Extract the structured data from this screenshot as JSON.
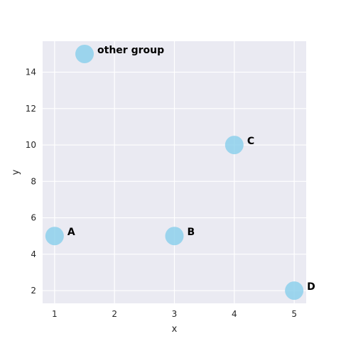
{
  "chart_data": {
    "type": "scatter",
    "xlabel": "x",
    "ylabel": "y",
    "xlim": [
      0.8,
      5.2
    ],
    "ylim": [
      1.3,
      15.7
    ],
    "xticks": [
      1,
      2,
      3,
      4,
      5
    ],
    "yticks": [
      2,
      4,
      6,
      8,
      10,
      12,
      14
    ],
    "grid": true,
    "points": [
      {
        "x": 1,
        "y": 5,
        "label": "A"
      },
      {
        "x": 3,
        "y": 5,
        "label": "B"
      },
      {
        "x": 4,
        "y": 10,
        "label": "C"
      },
      {
        "x": 5,
        "y": 2,
        "label": "D"
      },
      {
        "x": 1.5,
        "y": 15,
        "label": "other group"
      }
    ]
  },
  "colors": {
    "background": "#eaeaf2",
    "grid": "#ffffff",
    "marker": "#87ceeb"
  }
}
